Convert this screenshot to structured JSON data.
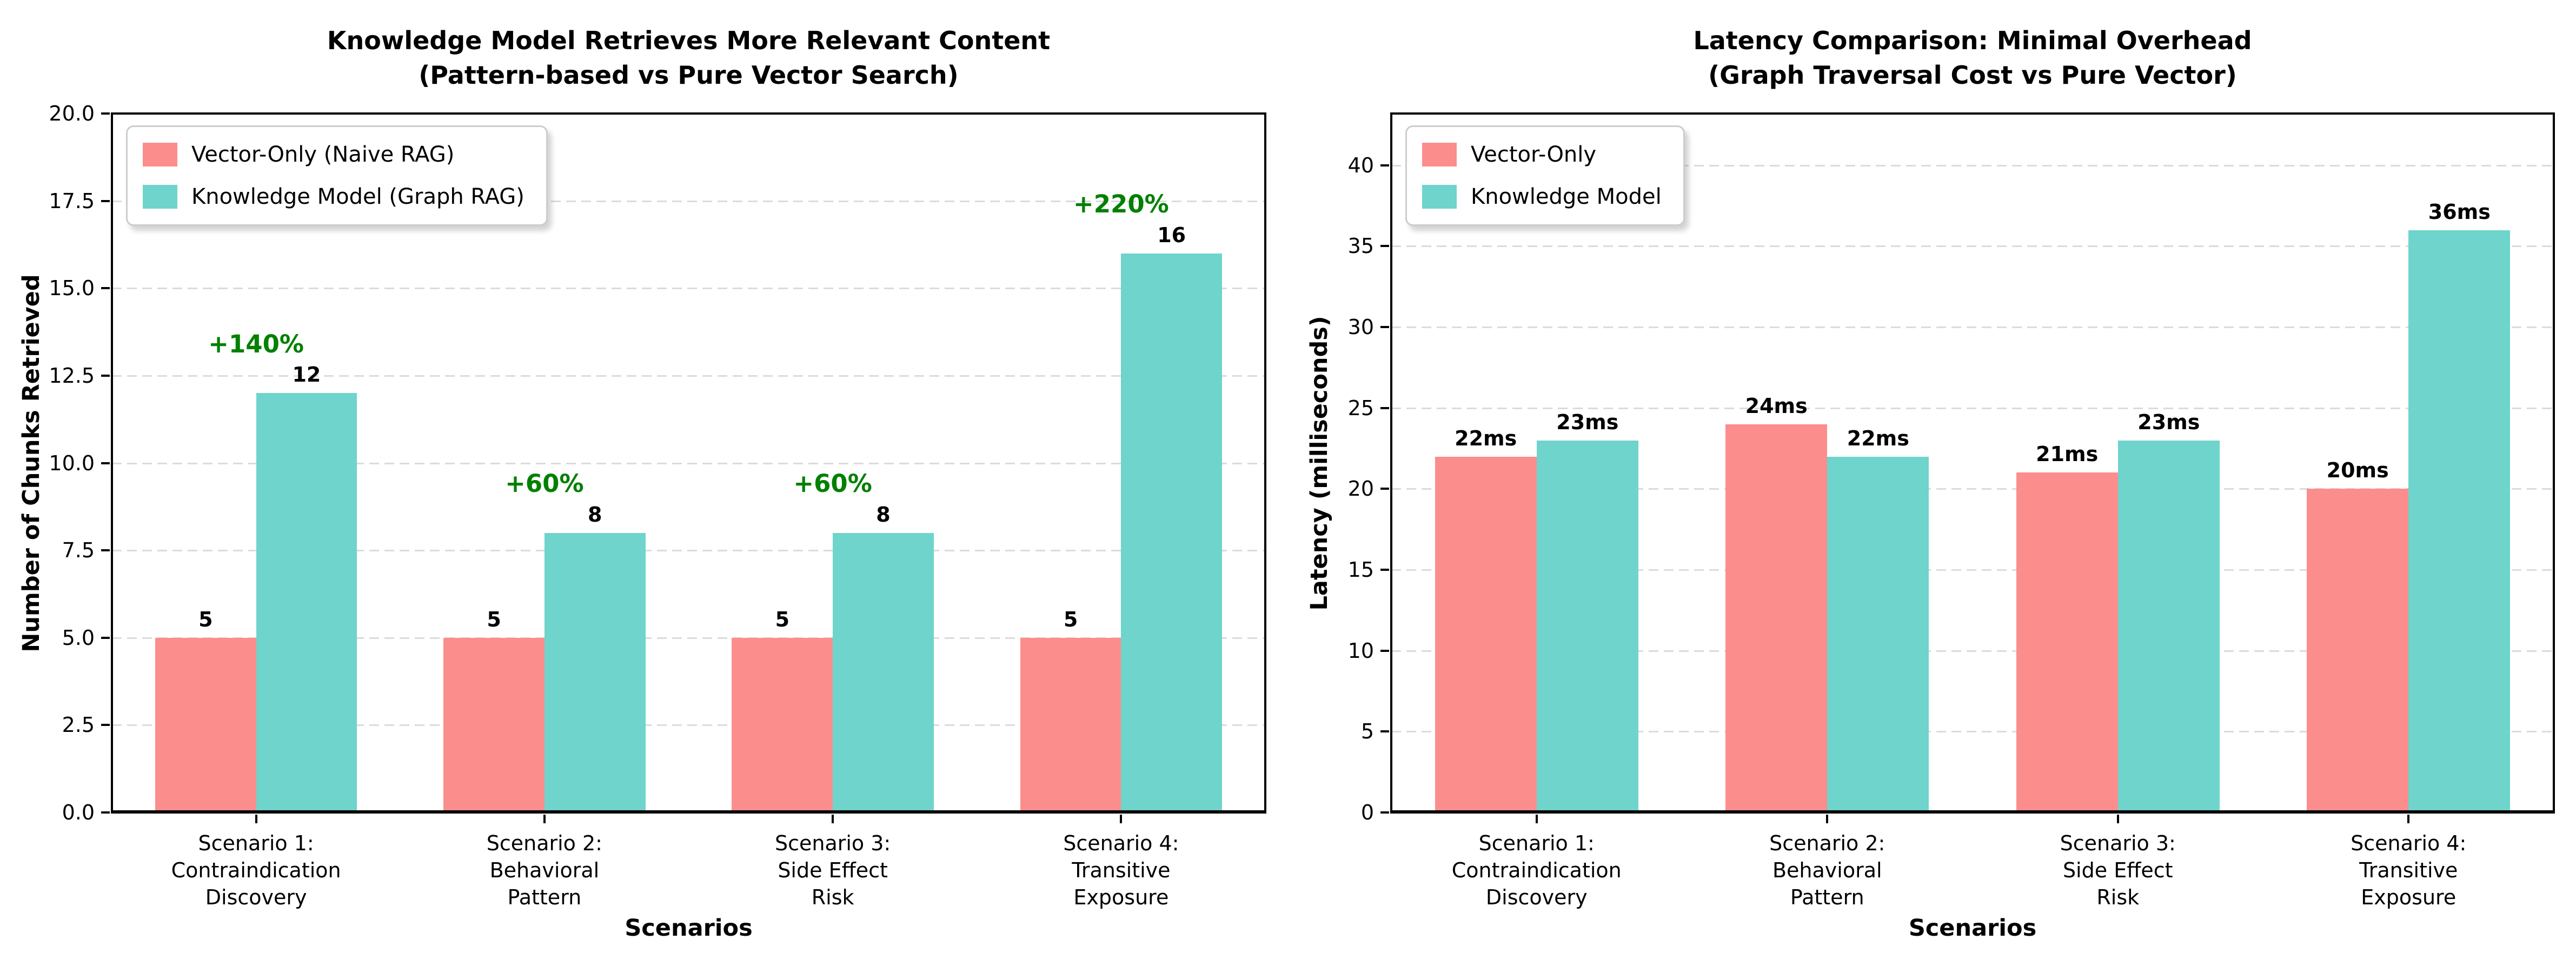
{
  "figure": {
    "background": "#FFFFFF",
    "text_color": "#000000",
    "grid_color": "#DBDBDB",
    "spine_color": "#000000",
    "annotation_color": "#008000",
    "vector_only_color": "#FC8D8D",
    "knowledge_model_color": "#6FD4CB"
  },
  "chart_data": [
    {
      "type": "bar",
      "title": "Knowledge Model Retrieves More Relevant Content\n(Pattern-based vs Pure Vector Search)",
      "xlabel": "Scenarios",
      "ylabel": "Number of Chunks Retrieved",
      "ylim": [
        0,
        20
      ],
      "yticks": [
        0,
        2.5,
        5,
        7.5,
        10,
        12.5,
        15,
        17.5,
        20
      ],
      "ytick_labels": [
        "0.0",
        "2.5",
        "5.0",
        "7.5",
        "10.0",
        "12.5",
        "15.0",
        "17.5",
        "20.0"
      ],
      "categories": [
        "Scenario 1:\nContraindication\nDiscovery",
        "Scenario 2:\nBehavioral\nPattern",
        "Scenario 3:\nSide Effect\nRisk",
        "Scenario 4:\nTransitive\nExposure"
      ],
      "bar_width_fraction": 0.35,
      "grid": true,
      "legend_position": "upper-left",
      "series": [
        {
          "name": "Vector-Only (Naive RAG)",
          "color": "#FC8D8D",
          "values": [
            5,
            5,
            5,
            5
          ],
          "labels": [
            "5",
            "5",
            "5",
            "5"
          ]
        },
        {
          "name": "Knowledge Model (Graph RAG)",
          "color": "#6FD4CB",
          "values": [
            12,
            8,
            8,
            16
          ],
          "labels": [
            "12",
            "8",
            "8",
            "16"
          ]
        }
      ],
      "annotations": [
        {
          "text": "+140%",
          "group": 0,
          "y": 13.4
        },
        {
          "text": "+60%",
          "group": 1,
          "y": 9.4
        },
        {
          "text": "+60%",
          "group": 2,
          "y": 9.4
        },
        {
          "text": "+220%",
          "group": 3,
          "y": 17.4
        }
      ]
    },
    {
      "type": "bar",
      "title": "Latency Comparison: Minimal Overhead\n(Graph Traversal Cost vs Pure Vector)",
      "xlabel": "Scenarios",
      "ylabel": "Latency (milliseconds)",
      "ylim": [
        0,
        43.2
      ],
      "yticks": [
        0,
        5,
        10,
        15,
        20,
        25,
        30,
        35,
        40
      ],
      "ytick_labels": [
        "0",
        "5",
        "10",
        "15",
        "20",
        "25",
        "30",
        "35",
        "40"
      ],
      "categories": [
        "Scenario 1:\nContraindication\nDiscovery",
        "Scenario 2:\nBehavioral\nPattern",
        "Scenario 3:\nSide Effect\nRisk",
        "Scenario 4:\nTransitive\nExposure"
      ],
      "bar_width_fraction": 0.35,
      "grid": true,
      "legend_position": "upper-left",
      "series": [
        {
          "name": "Vector-Only",
          "color": "#FC8D8D",
          "values": [
            22,
            24,
            21,
            20
          ],
          "labels": [
            "22ms",
            "24ms",
            "21ms",
            "20ms"
          ]
        },
        {
          "name": "Knowledge Model",
          "color": "#6FD4CB",
          "values": [
            23,
            22,
            23,
            36
          ],
          "labels": [
            "23ms",
            "22ms",
            "23ms",
            "36ms"
          ]
        }
      ],
      "annotations": []
    }
  ]
}
